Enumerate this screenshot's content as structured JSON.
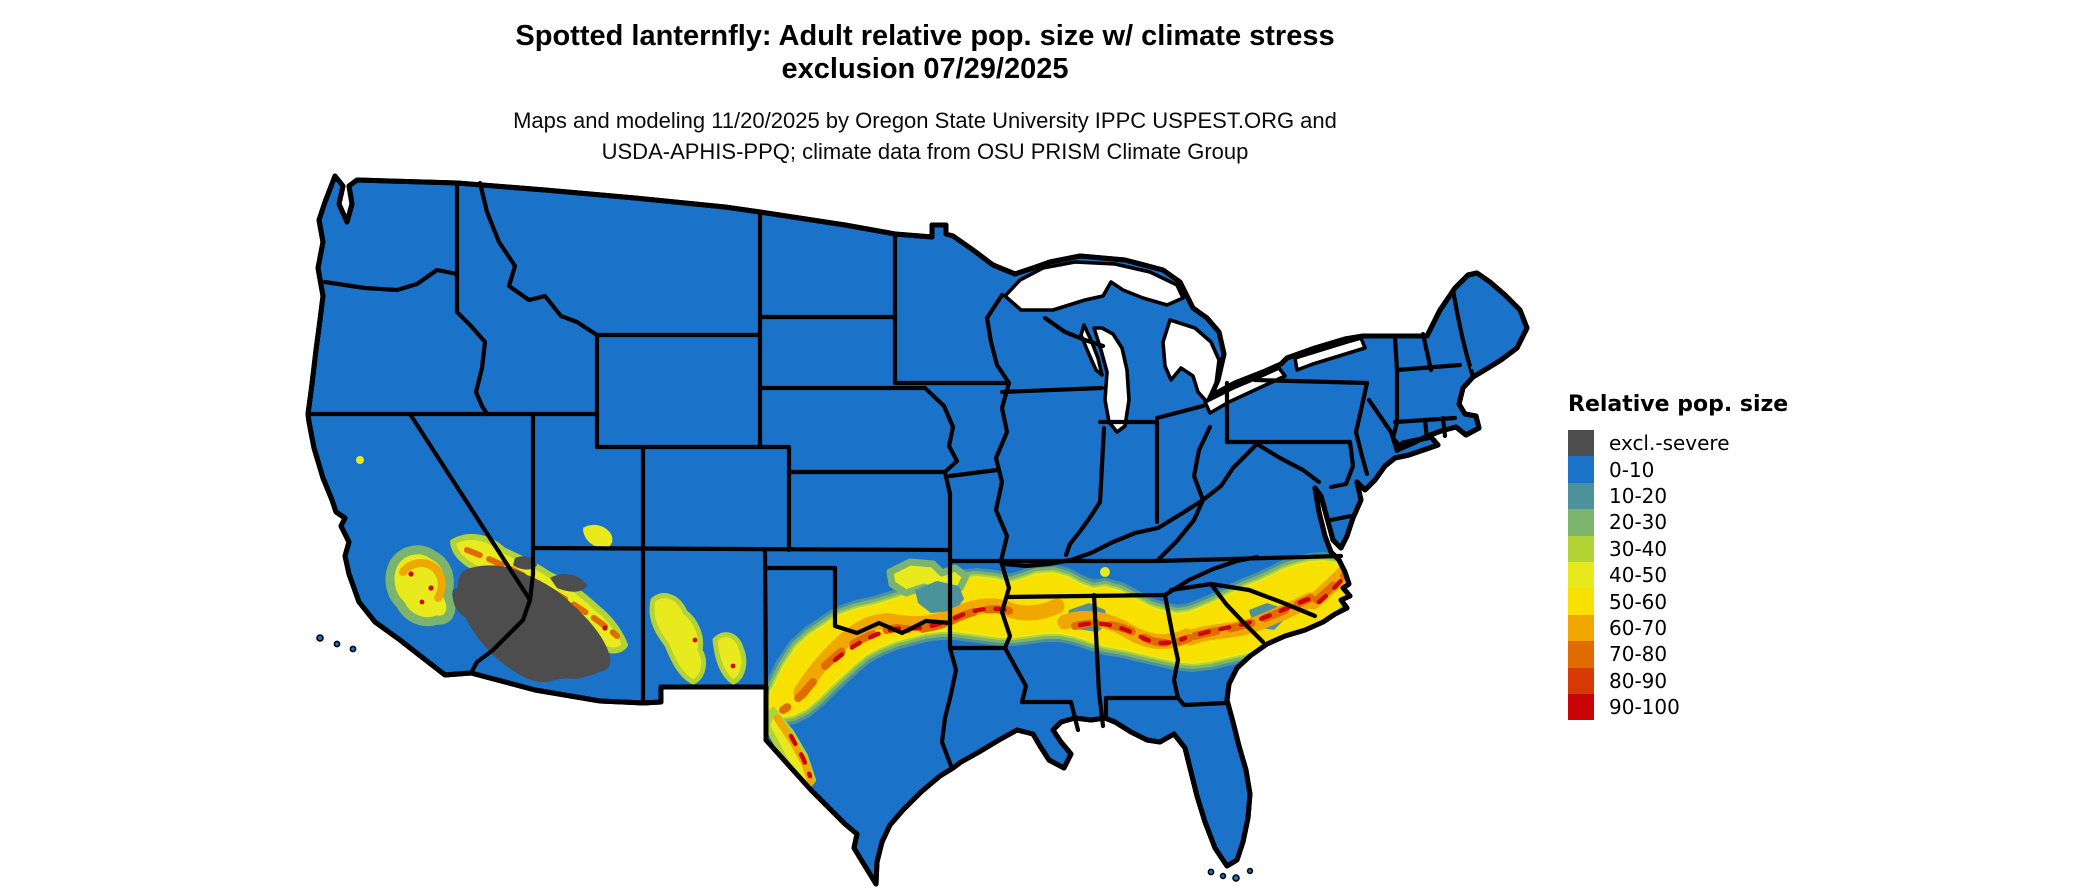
{
  "header": {
    "title_line1": "Spotted lanternfly: Adult relative pop. size w/ climate stress",
    "title_line2": "exclusion 07/29/2025",
    "subtitle_line1": "Maps and modeling 11/20/2025 by Oregon State University IPPC USPEST.ORG and",
    "subtitle_line2": "USDA-APHIS-PPQ; climate data from OSU PRISM Climate Group"
  },
  "legend": {
    "title": "Relative pop. size",
    "entries": [
      {
        "label": "excl.-severe",
        "color": "#4d4d4d"
      },
      {
        "label": "0-10",
        "color": "#1a73c8"
      },
      {
        "label": "10-20",
        "color": "#4b929b"
      },
      {
        "label": "20-30",
        "color": "#7cb36d"
      },
      {
        "label": "30-40",
        "color": "#b2d235"
      },
      {
        "label": "40-50",
        "color": "#e8ea1e"
      },
      {
        "label": "50-60",
        "color": "#f8e000"
      },
      {
        "label": "60-70",
        "color": "#f0a800"
      },
      {
        "label": "70-80",
        "color": "#e06c00"
      },
      {
        "label": "80-90",
        "color": "#d63903"
      },
      {
        "label": "90-100",
        "color": "#c90406"
      }
    ]
  },
  "map": {
    "region": "Continental United States",
    "base_color": "#1a73c8",
    "state_border_color": "#000000",
    "background_color": "#ffffff",
    "excluded_color": "#4d4d4d"
  }
}
